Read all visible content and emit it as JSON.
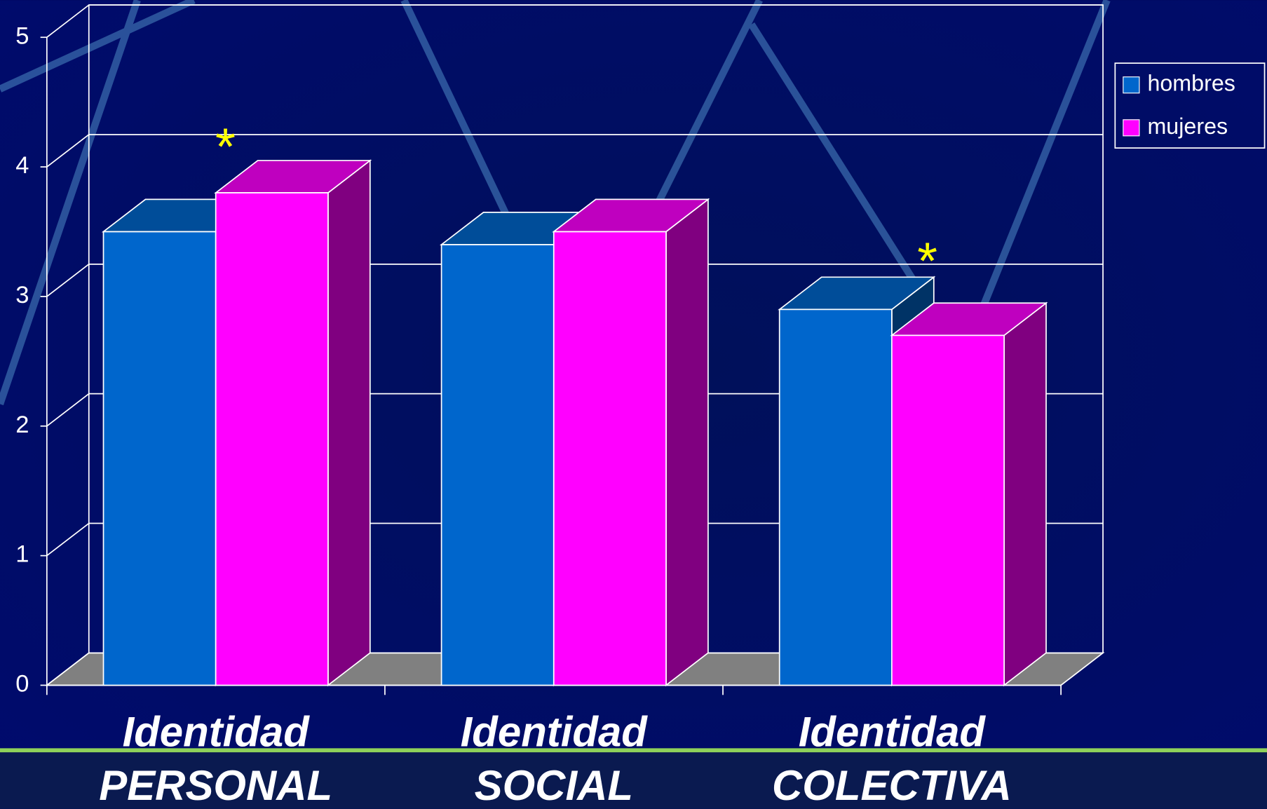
{
  "chart_data": {
    "type": "bar3d",
    "categories": [
      [
        "Identidad",
        "PERSONAL"
      ],
      [
        "Identidad",
        "SOCIAL"
      ],
      [
        "Identidad",
        "COLECTIVA"
      ]
    ],
    "series": [
      {
        "name": "hombres",
        "color": "#0066cc",
        "values": [
          3.5,
          3.4,
          2.9
        ]
      },
      {
        "name": "mujeres",
        "color": "#ff00ff",
        "values": [
          3.8,
          3.5,
          2.7
        ]
      }
    ],
    "ylim": [
      0,
      5
    ],
    "yticks": [
      0,
      1,
      2,
      3,
      4,
      5
    ],
    "grid": true,
    "legend": "right",
    "annotations": [
      {
        "text": "*",
        "category": 0,
        "series": 1
      },
      {
        "text": "*",
        "category": 2,
        "series": 0
      }
    ]
  }
}
